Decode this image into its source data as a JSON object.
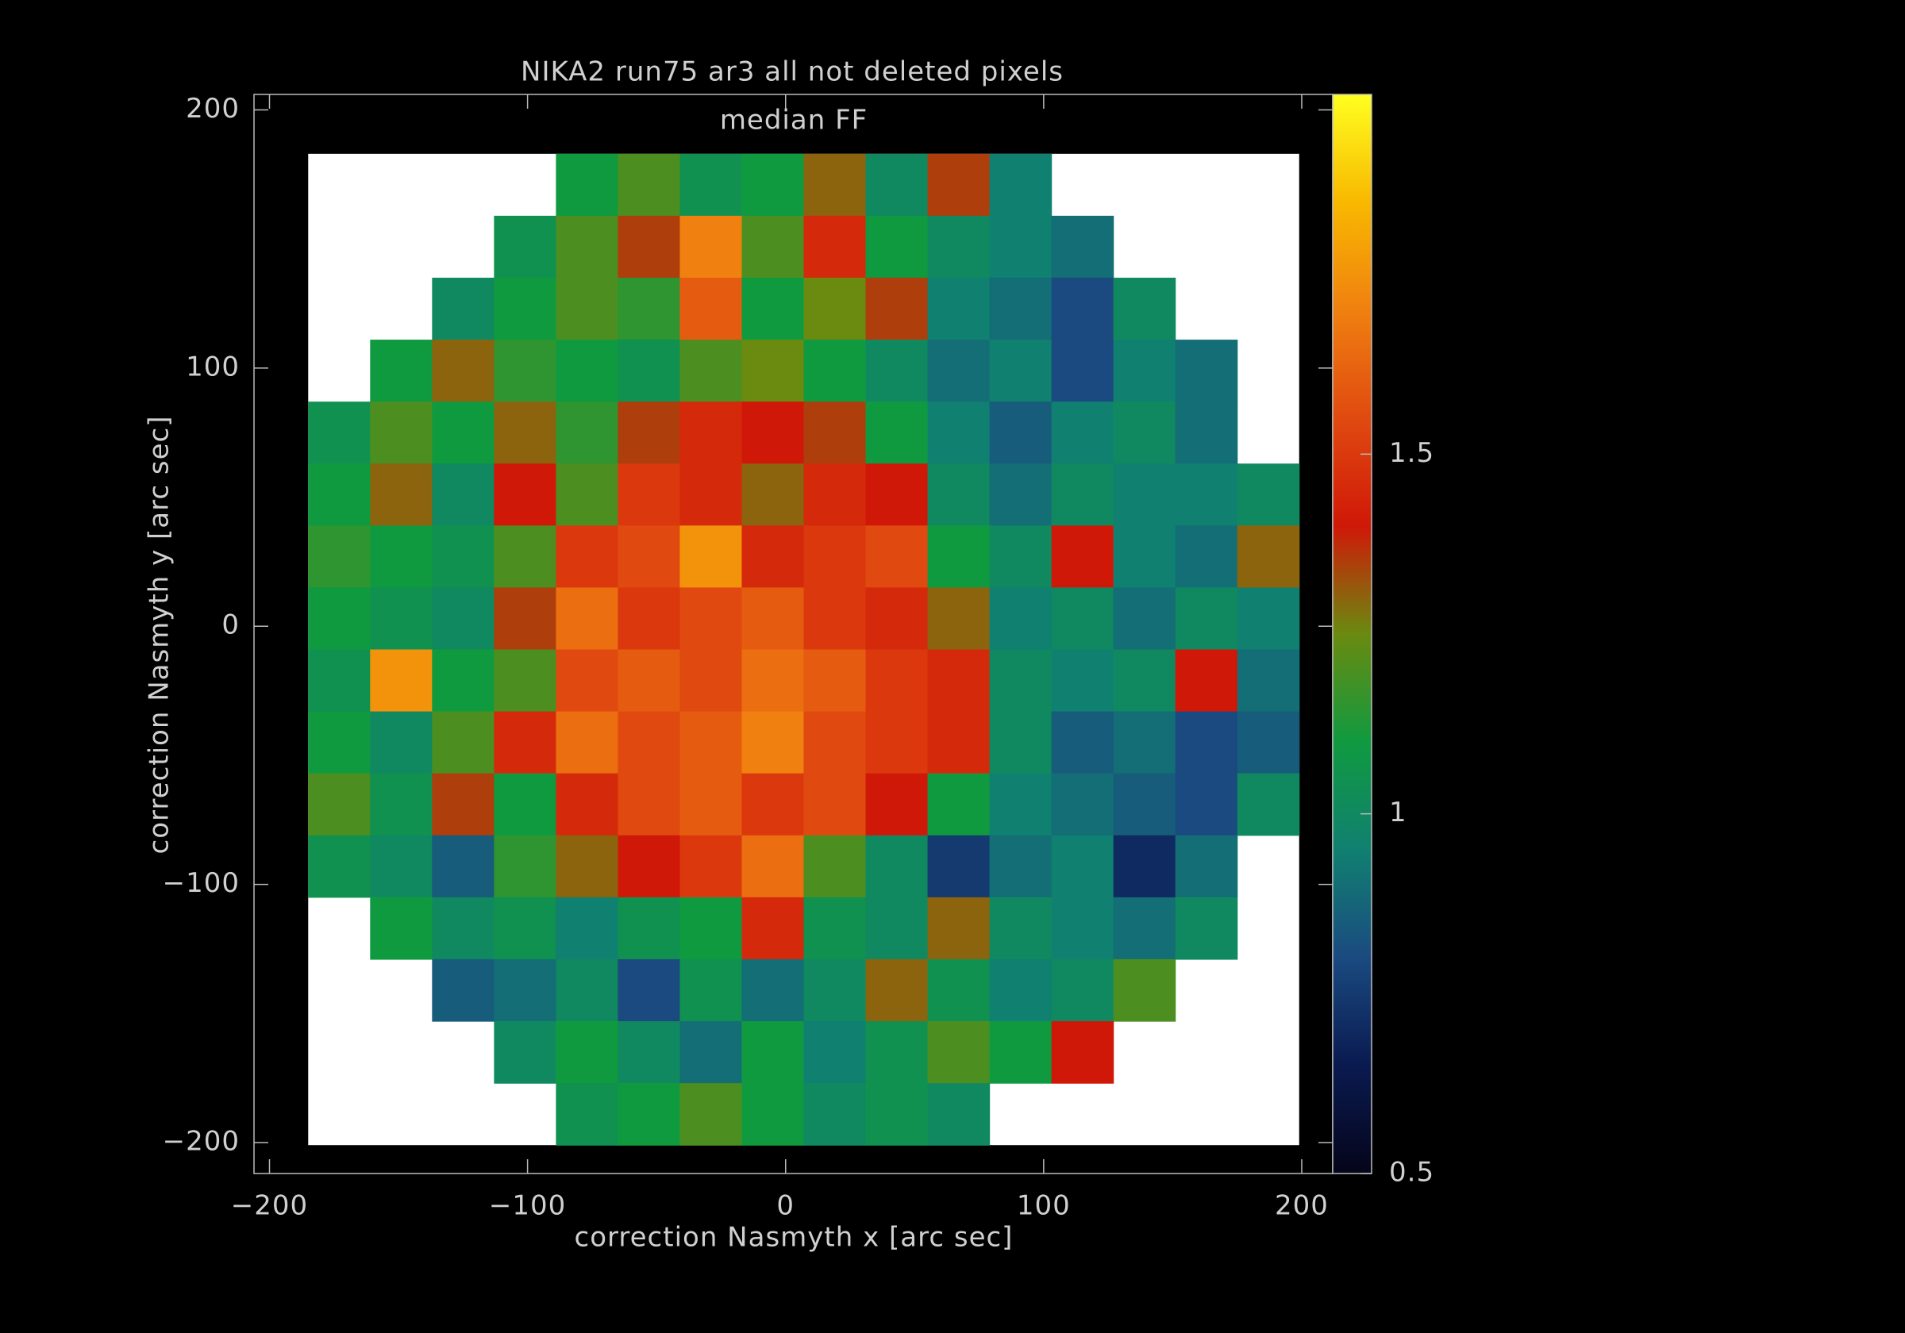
{
  "chart_data": {
    "type": "heatmap",
    "title": "NIKA2 run75 ar3 all not deleted pixels",
    "subtitle": "median FF",
    "xlabel": "correction Nasmyth x [arc sec]",
    "ylabel": "correction Nasmyth y [arc sec]",
    "xlim": [
      -206,
      212
    ],
    "ylim": [
      -212,
      206
    ],
    "xticks": [
      {
        "value": -200,
        "label": "−200"
      },
      {
        "value": -100,
        "label": "−100"
      },
      0,
      100,
      200
    ],
    "yticks": [
      {
        "value": -200,
        "label": "−200"
      },
      {
        "value": -100,
        "label": "−100"
      },
      0,
      100,
      200
    ],
    "clim": [
      0.5,
      2.0
    ],
    "cticks": [
      0.5,
      1,
      1.5
    ],
    "colormap": [
      "#05051a",
      "#0a1a50",
      "#1a4a80",
      "#108070",
      "#109a40",
      "#6a8a10",
      "#d01808",
      "#e04a10",
      "#f08010",
      "#f8b800",
      "#ffff20"
    ],
    "x": [
      -173,
      -149,
      -125,
      -101,
      -77,
      -53,
      -29,
      -5,
      19,
      43,
      67,
      91,
      115,
      139,
      163,
      187
    ],
    "y": [
      171,
      147,
      123,
      99,
      75,
      51,
      27,
      3,
      -21,
      -45,
      -69,
      -93,
      -117,
      -141,
      -165,
      -189
    ],
    "z": [
      [
        null,
        null,
        null,
        null,
        1.1,
        1.2,
        1.05,
        1.1,
        1.3,
        1.0,
        1.35,
        0.95,
        null,
        null,
        null,
        null
      ],
      [
        null,
        null,
        null,
        1.05,
        1.2,
        1.35,
        1.7,
        1.2,
        1.45,
        1.1,
        1.0,
        0.95,
        0.9,
        null,
        null,
        null
      ],
      [
        null,
        null,
        1.0,
        1.1,
        1.2,
        1.15,
        1.6,
        1.1,
        1.25,
        1.35,
        0.95,
        0.9,
        0.8,
        1.0,
        null,
        null
      ],
      [
        null,
        1.1,
        1.3,
        1.15,
        1.1,
        1.05,
        1.2,
        1.25,
        1.1,
        1.0,
        0.9,
        0.95,
        0.8,
        0.95,
        0.9,
        null
      ],
      [
        1.05,
        1.2,
        1.1,
        1.3,
        1.15,
        1.35,
        1.45,
        1.4,
        1.35,
        1.1,
        0.95,
        0.85,
        0.95,
        1.0,
        0.9,
        null
      ],
      [
        1.1,
        1.3,
        1.0,
        1.4,
        1.2,
        1.5,
        1.45,
        1.3,
        1.45,
        1.4,
        1.0,
        0.9,
        1.0,
        0.95,
        0.95,
        1.0
      ],
      [
        1.15,
        1.1,
        1.05,
        1.2,
        1.5,
        1.55,
        1.75,
        1.45,
        1.5,
        1.55,
        1.1,
        1.0,
        1.4,
        0.95,
        0.9,
        1.3
      ],
      [
        1.1,
        1.05,
        1.0,
        1.35,
        1.65,
        1.5,
        1.55,
        1.6,
        1.5,
        1.45,
        1.3,
        0.95,
        1.0,
        0.9,
        1.0,
        0.95
      ],
      [
        1.05,
        1.75,
        1.1,
        1.2,
        1.55,
        1.6,
        1.55,
        1.65,
        1.6,
        1.5,
        1.45,
        1.0,
        0.95,
        1.0,
        1.4,
        0.9
      ],
      [
        1.1,
        1.0,
        1.2,
        1.45,
        1.65,
        1.55,
        1.6,
        1.7,
        1.55,
        1.5,
        1.45,
        1.0,
        0.85,
        0.9,
        0.8,
        0.85
      ],
      [
        1.2,
        1.05,
        1.35,
        1.1,
        1.45,
        1.55,
        1.6,
        1.5,
        1.55,
        1.4,
        1.1,
        0.95,
        0.9,
        0.85,
        0.8,
        1.0
      ],
      [
        1.05,
        1.0,
        0.85,
        1.15,
        1.3,
        1.4,
        1.5,
        1.65,
        1.2,
        1.0,
        0.75,
        0.9,
        0.95,
        0.7,
        0.9,
        null
      ],
      [
        null,
        1.1,
        1.0,
        1.05,
        0.95,
        1.05,
        1.1,
        1.45,
        1.05,
        1.0,
        1.3,
        1.0,
        0.95,
        0.9,
        1.0,
        null
      ],
      [
        null,
        null,
        0.85,
        0.9,
        1.0,
        0.8,
        1.05,
        0.9,
        1.0,
        1.3,
        1.05,
        0.95,
        1.0,
        1.2,
        null,
        null
      ],
      [
        null,
        null,
        null,
        1.0,
        1.1,
        1.0,
        0.9,
        1.1,
        0.95,
        1.05,
        1.2,
        1.1,
        1.4,
        null,
        null,
        null
      ],
      [
        null,
        null,
        null,
        null,
        1.05,
        1.1,
        1.2,
        1.1,
        1.0,
        1.05,
        1.0,
        null,
        null,
        null,
        null,
        null
      ]
    ]
  }
}
